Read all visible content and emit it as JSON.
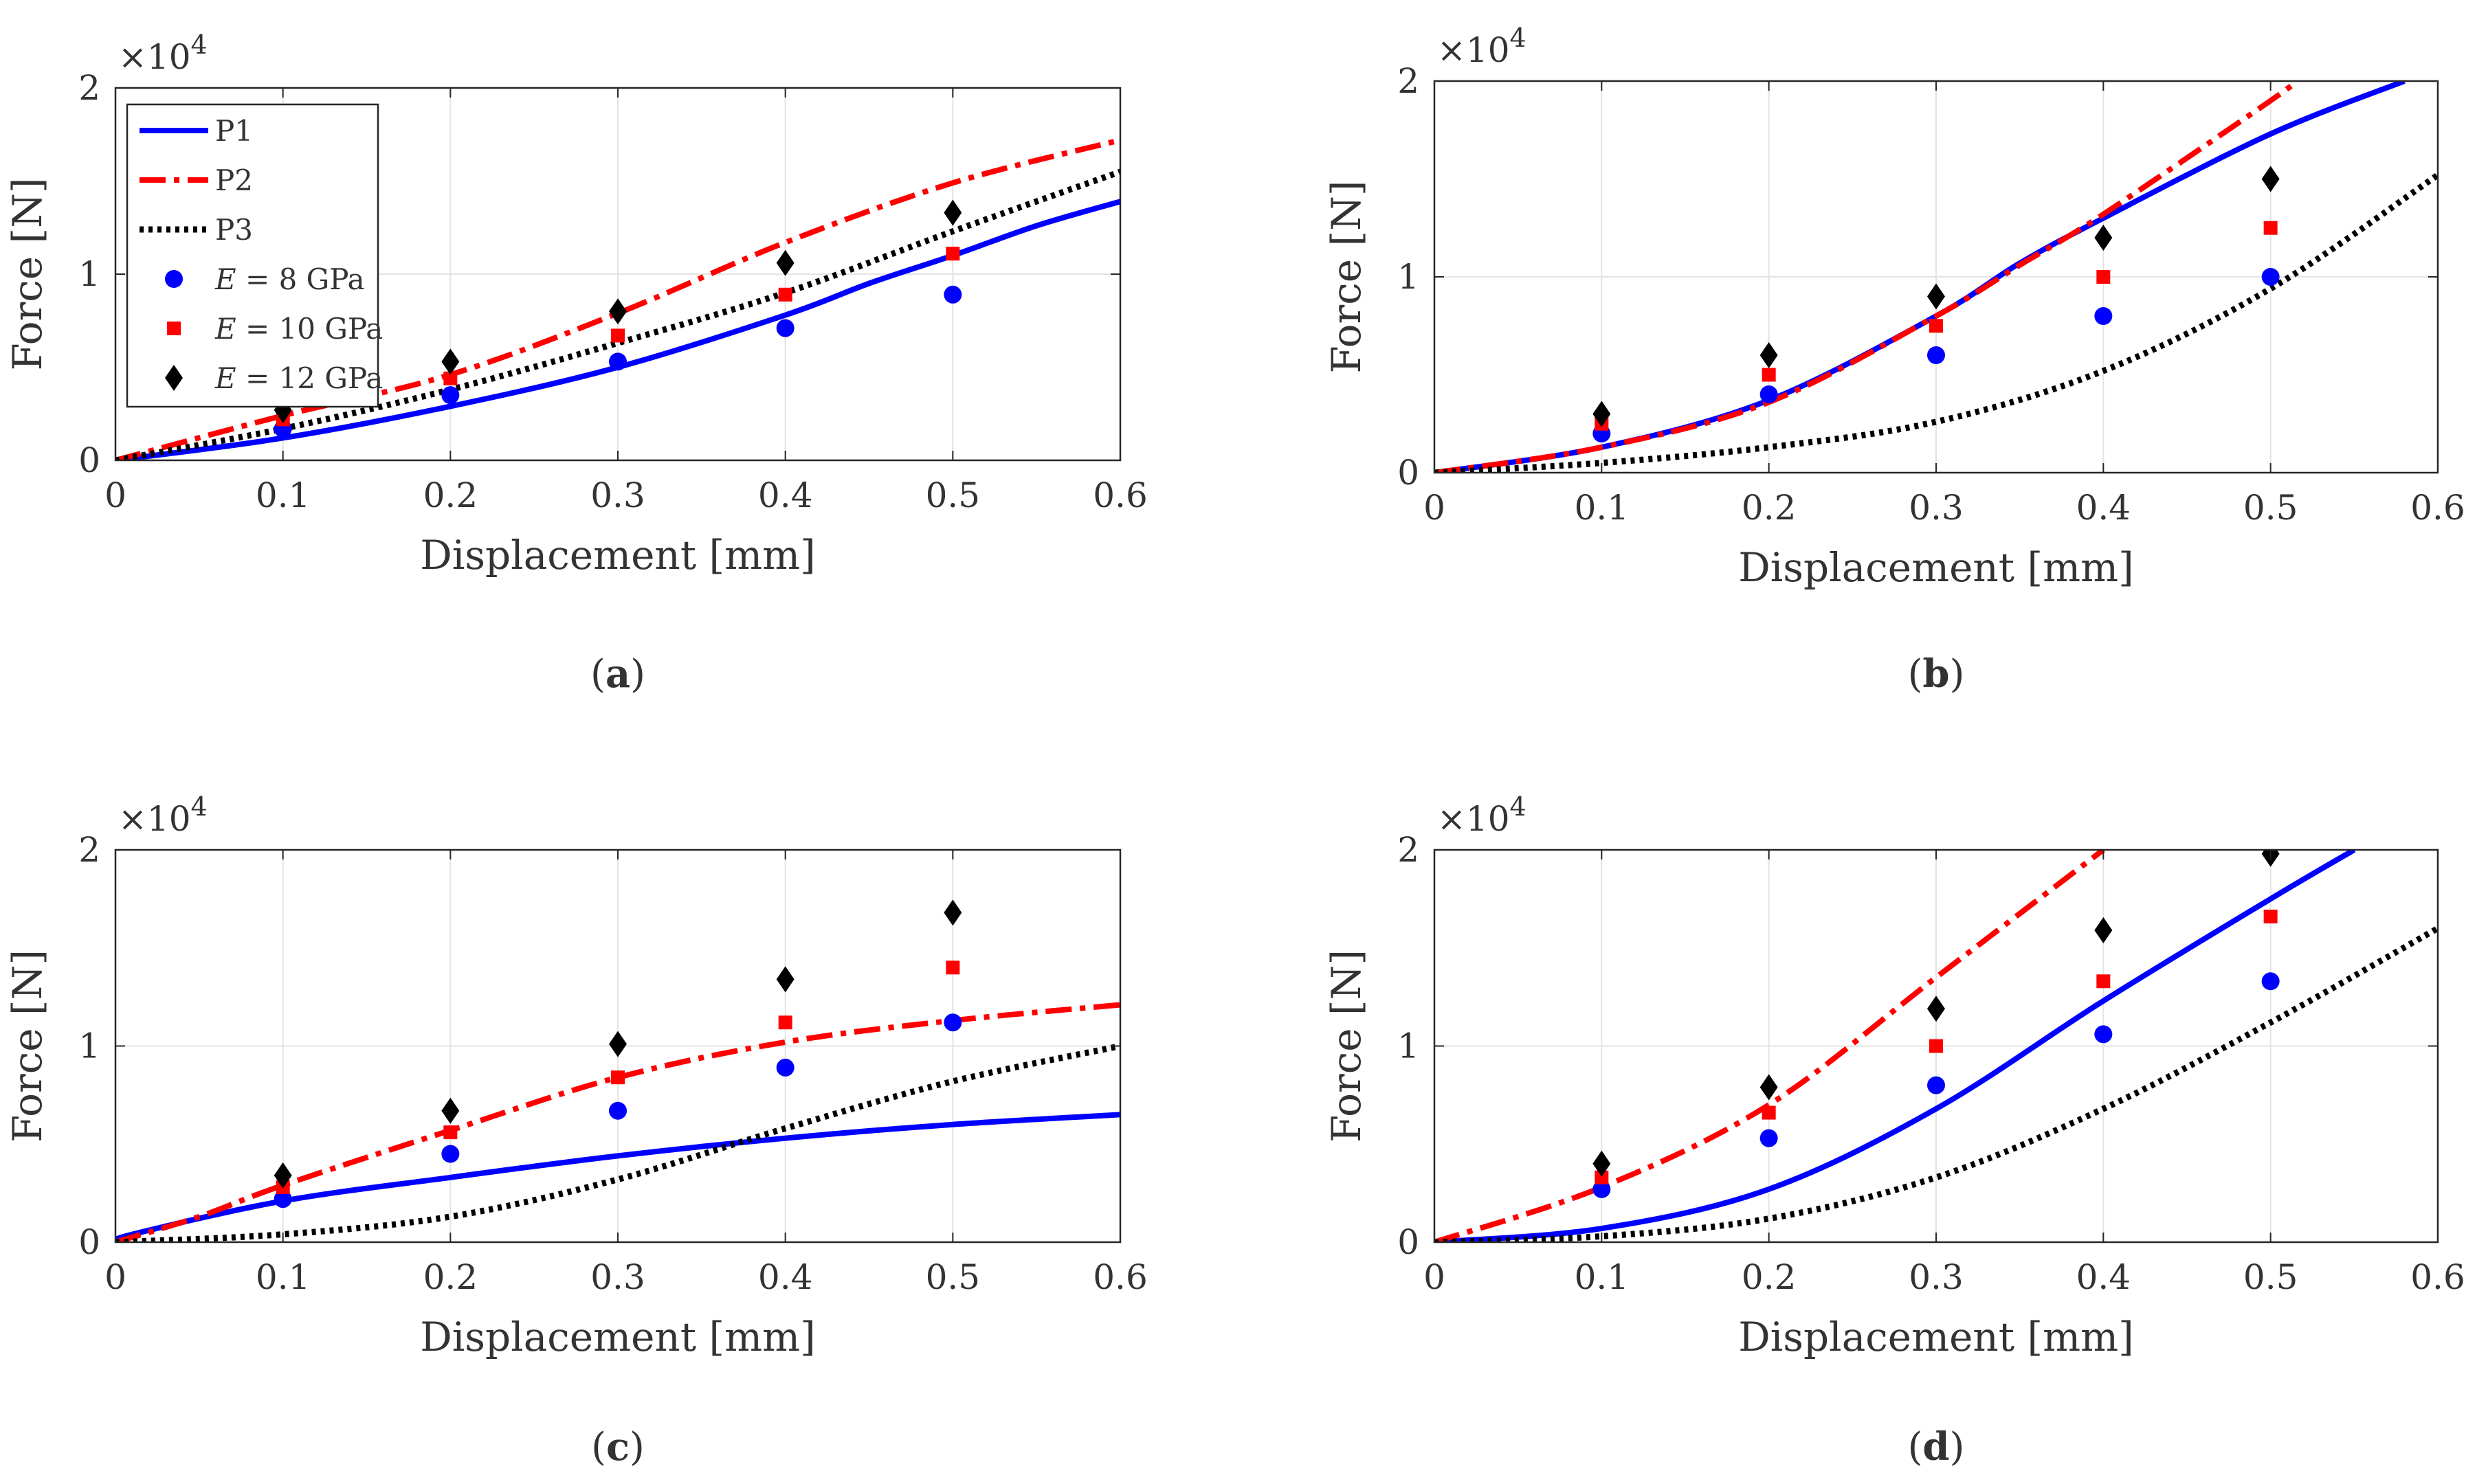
{
  "figure": {
    "panel_labels": [
      "(a)",
      "(b)",
      "(c)",
      "(d)"
    ],
    "multiplier_base": "×10",
    "multiplier_exp": "4"
  },
  "legend": {
    "items": [
      {
        "label": "P1",
        "kind": "line",
        "series": "P1"
      },
      {
        "label": "P2",
        "kind": "line",
        "series": "P2"
      },
      {
        "label": "P3",
        "kind": "line",
        "series": "P3"
      },
      {
        "label": "E = 8 GPa",
        "kind": "marker",
        "series": "E8"
      },
      {
        "label": "E = 10 GPa",
        "kind": "marker",
        "series": "E10"
      },
      {
        "label": "E = 12 GPa",
        "kind": "marker",
        "series": "E12"
      }
    ]
  },
  "styles": {
    "P1": {
      "color": "#0000ff",
      "dash": "solid"
    },
    "P2": {
      "color": "#ff0000",
      "dash": "dashdot"
    },
    "P3": {
      "color": "#000000",
      "dash": "dotted"
    },
    "E8": {
      "color": "#0000ff",
      "marker": "circle"
    },
    "E10": {
      "color": "#ff0000",
      "marker": "square"
    },
    "E12": {
      "color": "#000000",
      "marker": "diamond"
    }
  },
  "chart_data": [
    {
      "type": "line",
      "panel": "(a)",
      "xlabel": "Displacement [mm]",
      "ylabel": "Force [N]",
      "xlim": [
        0,
        0.6
      ],
      "ylim": [
        0,
        20000
      ],
      "xticks": [
        0,
        0.1,
        0.2,
        0.3,
        0.4,
        0.5,
        0.6
      ],
      "xtick_labels": [
        "0",
        "0.1",
        "0.2",
        "0.3",
        "0.4",
        "0.5",
        "0.6"
      ],
      "yticks": [
        0,
        10000,
        20000
      ],
      "ytick_labels": [
        "0",
        "1",
        "2"
      ],
      "y_multiplier": "×10^4",
      "grid": true,
      "legend_position": "top-left",
      "series": [
        {
          "name": "P1",
          "x": [
            0,
            0.1,
            0.2,
            0.3,
            0.4,
            0.45,
            0.5,
            0.55,
            0.6
          ],
          "y": [
            0,
            1200,
            2900,
            5000,
            7800,
            9500,
            11000,
            12600,
            13900
          ]
        },
        {
          "name": "P2",
          "x": [
            0,
            0.1,
            0.2,
            0.3,
            0.4,
            0.5,
            0.6
          ],
          "y": [
            0,
            2400,
            4600,
            7900,
            11700,
            14900,
            17200
          ]
        },
        {
          "name": "P3",
          "x": [
            0,
            0.1,
            0.2,
            0.3,
            0.4,
            0.5,
            0.6
          ],
          "y": [
            0,
            1700,
            3800,
            6300,
            9000,
            12300,
            15500
          ]
        },
        {
          "name": "E = 8 GPa",
          "x": [
            0.1,
            0.2,
            0.3,
            0.4,
            0.5
          ],
          "y": [
            1700,
            3500,
            5300,
            7100,
            8900
          ]
        },
        {
          "name": "E = 10 GPa",
          "x": [
            0.1,
            0.2,
            0.3,
            0.4,
            0.5
          ],
          "y": [
            2200,
            4400,
            6700,
            8900,
            11100
          ]
        },
        {
          "name": "E = 12 GPa",
          "x": [
            0.1,
            0.2,
            0.3,
            0.4,
            0.5
          ],
          "y": [
            2700,
            5300,
            8000,
            10600,
            13300
          ]
        }
      ]
    },
    {
      "type": "line",
      "panel": "(b)",
      "xlabel": "Displacement [mm]",
      "ylabel": "Force [N]",
      "xlim": [
        0,
        0.6
      ],
      "ylim": [
        0,
        20000
      ],
      "xticks": [
        0,
        0.1,
        0.2,
        0.3,
        0.4,
        0.5,
        0.6
      ],
      "xtick_labels": [
        "0",
        "0.1",
        "0.2",
        "0.3",
        "0.4",
        "0.5",
        "0.6"
      ],
      "yticks": [
        0,
        10000,
        20000
      ],
      "ytick_labels": [
        "0",
        "1",
        "2"
      ],
      "y_multiplier": "×10^4",
      "grid": true,
      "series": [
        {
          "name": "P1",
          "x": [
            0,
            0.1,
            0.2,
            0.3,
            0.35,
            0.4,
            0.5,
            0.58
          ],
          "y": [
            0,
            1300,
            3700,
            8000,
            10700,
            13000,
            17300,
            20000
          ]
        },
        {
          "name": "P2",
          "x": [
            0,
            0.1,
            0.2,
            0.3,
            0.35,
            0.4,
            0.5,
            0.515
          ],
          "y": [
            0,
            1300,
            3600,
            8000,
            10600,
            13200,
            19000,
            20000
          ]
        },
        {
          "name": "P3",
          "x": [
            0,
            0.1,
            0.2,
            0.3,
            0.4,
            0.5,
            0.6
          ],
          "y": [
            0,
            500,
            1300,
            2600,
            5200,
            9400,
            15200
          ]
        },
        {
          "name": "E = 8 GPa",
          "x": [
            0.1,
            0.2,
            0.3,
            0.4,
            0.5
          ],
          "y": [
            2000,
            4000,
            6000,
            8000,
            10000
          ]
        },
        {
          "name": "E = 10 GPa",
          "x": [
            0.1,
            0.2,
            0.3,
            0.4,
            0.5
          ],
          "y": [
            2500,
            5000,
            7500,
            10000,
            12500
          ]
        },
        {
          "name": "E = 12 GPa",
          "x": [
            0.1,
            0.2,
            0.3,
            0.4,
            0.5
          ],
          "y": [
            3000,
            6000,
            9000,
            12000,
            15000
          ]
        }
      ]
    },
    {
      "type": "line",
      "panel": "(c)",
      "xlabel": "Displacement [mm]",
      "ylabel": "Force [N]",
      "xlim": [
        0,
        0.6
      ],
      "ylim": [
        0,
        20000
      ],
      "xticks": [
        0,
        0.1,
        0.2,
        0.3,
        0.4,
        0.5,
        0.6
      ],
      "xtick_labels": [
        "0",
        "0.1",
        "0.2",
        "0.3",
        "0.4",
        "0.5",
        "0.6"
      ],
      "yticks": [
        0,
        10000,
        20000
      ],
      "ytick_labels": [
        "0",
        "1",
        "2"
      ],
      "y_multiplier": "×10^4",
      "grid": true,
      "series": [
        {
          "name": "P1",
          "x": [
            0,
            0.01,
            0.1,
            0.2,
            0.3,
            0.4,
            0.5,
            0.6
          ],
          "y": [
            0,
            400,
            2100,
            3300,
            4400,
            5300,
            6000,
            6500
          ]
        },
        {
          "name": "P2",
          "x": [
            0,
            0.05,
            0.1,
            0.2,
            0.3,
            0.4,
            0.5,
            0.6
          ],
          "y": [
            0,
            1300,
            2900,
            5700,
            8400,
            10200,
            11300,
            12100
          ]
        },
        {
          "name": "P3",
          "x": [
            0,
            0.1,
            0.2,
            0.3,
            0.4,
            0.5,
            0.6
          ],
          "y": [
            0,
            400,
            1300,
            3200,
            5800,
            8200,
            10000
          ]
        },
        {
          "name": "E = 8 GPa",
          "x": [
            0.1,
            0.2,
            0.3,
            0.4,
            0.5
          ],
          "y": [
            2200,
            4500,
            6700,
            8900,
            11200
          ]
        },
        {
          "name": "E = 10 GPa",
          "x": [
            0.1,
            0.2,
            0.3,
            0.4,
            0.5
          ],
          "y": [
            2800,
            5600,
            8400,
            11200,
            14000
          ]
        },
        {
          "name": "E = 12 GPa",
          "x": [
            0.1,
            0.2,
            0.3,
            0.4,
            0.5
          ],
          "y": [
            3400,
            6700,
            10100,
            13400,
            16800
          ]
        }
      ]
    },
    {
      "type": "line",
      "panel": "(d)",
      "xlabel": "Displacement [mm]",
      "ylabel": "Force [N]",
      "xlim": [
        0,
        0.6
      ],
      "ylim": [
        0,
        20000
      ],
      "xticks": [
        0,
        0.1,
        0.2,
        0.3,
        0.4,
        0.5,
        0.6
      ],
      "xtick_labels": [
        "0",
        "0.1",
        "0.2",
        "0.3",
        "0.4",
        "0.5",
        "0.6"
      ],
      "yticks": [
        0,
        10000,
        20000
      ],
      "ytick_labels": [
        "0",
        "1",
        "2"
      ],
      "y_multiplier": "×10^4",
      "grid": true,
      "series": [
        {
          "name": "P1",
          "x": [
            0,
            0.1,
            0.2,
            0.3,
            0.4,
            0.5,
            0.55
          ],
          "y": [
            0,
            700,
            2700,
            6800,
            12300,
            17500,
            20000
          ]
        },
        {
          "name": "P2",
          "x": [
            0,
            0.1,
            0.2,
            0.3,
            0.4
          ],
          "y": [
            0,
            2800,
            7000,
            13500,
            20000
          ]
        },
        {
          "name": "P3",
          "x": [
            0,
            0.1,
            0.2,
            0.3,
            0.4,
            0.5,
            0.6
          ],
          "y": [
            0,
            300,
            1200,
            3300,
            6800,
            11200,
            16000
          ]
        },
        {
          "name": "E = 8 GPa",
          "x": [
            0.1,
            0.2,
            0.3,
            0.4,
            0.5
          ],
          "y": [
            2700,
            5300,
            8000,
            10600,
            13300
          ]
        },
        {
          "name": "E = 10 GPa",
          "x": [
            0.1,
            0.2,
            0.3,
            0.4,
            0.5
          ],
          "y": [
            3300,
            6600,
            10000,
            13300,
            16600
          ]
        },
        {
          "name": "E = 12 GPa",
          "x": [
            0.1,
            0.2,
            0.3,
            0.4,
            0.5
          ],
          "y": [
            4000,
            7900,
            11900,
            15900,
            19800
          ]
        }
      ]
    }
  ]
}
